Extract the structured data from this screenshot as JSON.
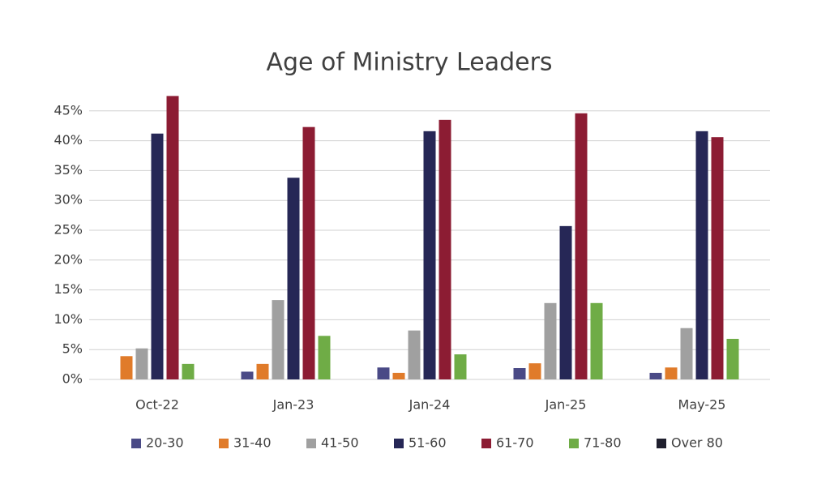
{
  "chart_data": {
    "type": "bar",
    "title": "Age of Ministry Leaders",
    "categories": [
      "Oct-22",
      "Jan-23",
      "Jan-24",
      "Jan-25",
      "May-25"
    ],
    "series": [
      {
        "name": "20-30",
        "color": "#4a4a86",
        "values": [
          0,
          1.3,
          2.0,
          1.9,
          1.1
        ]
      },
      {
        "name": "31-40",
        "color": "#e07b2a",
        "values": [
          3.9,
          2.6,
          1.1,
          2.7,
          2.0
        ]
      },
      {
        "name": "41-50",
        "color": "#a0a0a0",
        "values": [
          5.2,
          13.3,
          8.2,
          12.8,
          8.6
        ]
      },
      {
        "name": "51-60",
        "color": "#262756",
        "values": [
          41.2,
          33.8,
          41.6,
          25.7,
          41.6
        ]
      },
      {
        "name": "61-70",
        "color": "#8c1c33",
        "values": [
          47.5,
          42.3,
          43.5,
          44.6,
          40.6
        ]
      },
      {
        "name": "71-80",
        "color": "#6fac46",
        "values": [
          2.6,
          7.3,
          4.2,
          12.8,
          6.8
        ]
      },
      {
        "name": "Over 80",
        "color": "#1f1f2e",
        "values": [
          0,
          0,
          0,
          0,
          0
        ]
      }
    ],
    "ylim": [
      0,
      50
    ],
    "yticks": [
      {
        "value": 0,
        "label": "0%"
      },
      {
        "value": 5,
        "label": "5%"
      },
      {
        "value": 10,
        "label": "10%"
      },
      {
        "value": 15,
        "label": "15%"
      },
      {
        "value": 20,
        "label": "20%"
      },
      {
        "value": 25,
        "label": "25%"
      },
      {
        "value": 30,
        "label": "30%"
      },
      {
        "value": 35,
        "label": "35%"
      },
      {
        "value": 40,
        "label": "40%"
      },
      {
        "value": 45,
        "label": "45%"
      }
    ],
    "grid": true,
    "legend": "bottom"
  }
}
